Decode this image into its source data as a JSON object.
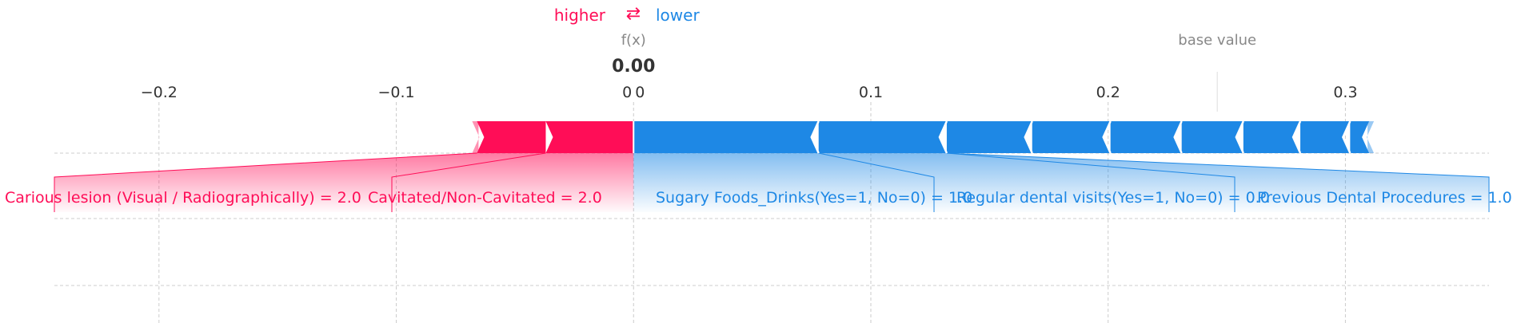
{
  "chart_data": {
    "type": "force",
    "legend": {
      "higher": "higher",
      "arrows": "⇄",
      "lower": "lower"
    },
    "fx_label": "f(x)",
    "fx_value_text": "0.00",
    "fx_value": 0.0,
    "base_label": "base value",
    "base_value": 0.246,
    "xlim": [
      -0.267,
      0.374
    ],
    "ticks": [
      {
        "value": -0.2,
        "label": "−0.2"
      },
      {
        "value": -0.1,
        "label": "−0.1"
      },
      {
        "value": 0.0,
        "label": "0"
      },
      {
        "value": 0.1,
        "label": "0.1"
      },
      {
        "value": 0.2,
        "label": "0.2"
      },
      {
        "value": 0.3,
        "label": "0.3"
      }
    ],
    "tick_label_zero_duplicate": "0",
    "colors": {
      "higher": "#ff0d57",
      "lower": "#1e88e5",
      "muted": "#888888",
      "grid": "#cccccc"
    },
    "positive_segments": [
      {
        "start": -0.066,
        "end": -0.037
      },
      {
        "start": -0.037,
        "end": 0.0
      }
    ],
    "negative_segments": [
      {
        "start": 0.0,
        "end": 0.078
      },
      {
        "start": 0.078,
        "end": 0.132
      },
      {
        "start": 0.132,
        "end": 0.168
      },
      {
        "start": 0.168,
        "end": 0.201
      },
      {
        "start": 0.201,
        "end": 0.231
      },
      {
        "start": 0.231,
        "end": 0.257
      },
      {
        "start": 0.257,
        "end": 0.281
      },
      {
        "start": 0.281,
        "end": 0.302
      },
      {
        "start": 0.302,
        "end": 0.31
      }
    ],
    "positive_features": [
      {
        "label": "Carious lesion (Visual / Radiographically) = 2.0"
      },
      {
        "label": "Cavitated/Non-Cavitated = 2.0"
      }
    ],
    "negative_features": [
      {
        "label": "Sugary Foods_Drinks(Yes=1, No=0) = 1.0"
      },
      {
        "label": "Regular dental visits(Yes=1, No=0) = 0.0"
      },
      {
        "label": "Previous Dental Procedures = 1.0"
      }
    ]
  }
}
